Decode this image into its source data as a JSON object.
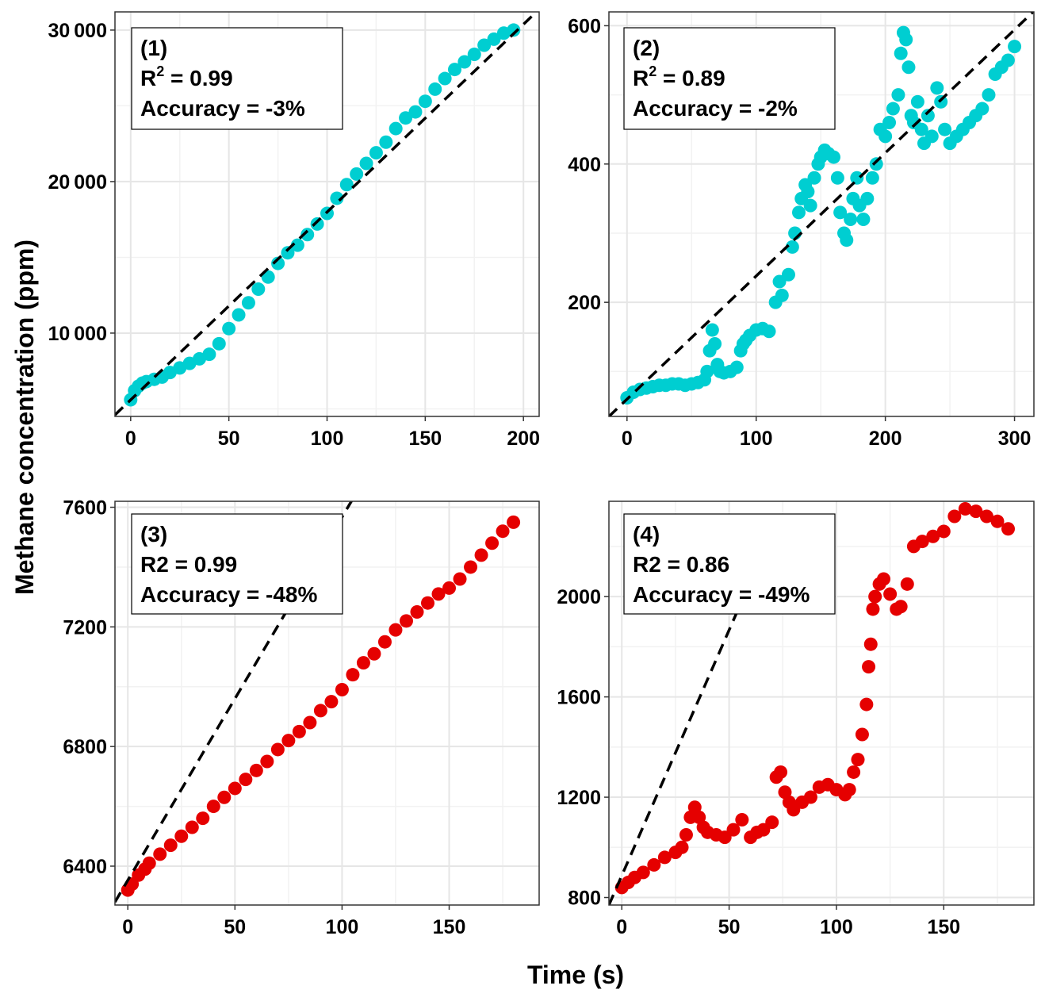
{
  "figure": {
    "ylabel": "Methane concentration (ppm)",
    "xlabel": "Time (s)"
  },
  "colors": {
    "cyan": "#00CED1",
    "red": "#E50000",
    "refline": "#000000"
  },
  "chart_data": [
    {
      "type": "scatter",
      "panel": "(1)",
      "annotation": [
        "(1)",
        "R2 = 0.99",
        "Accuracy = -3%"
      ],
      "r2_superscript": true,
      "xlim": [
        -8,
        208
      ],
      "ylim": [
        4500,
        31200
      ],
      "xticks": [
        0,
        50,
        100,
        150,
        200
      ],
      "xtick_labels": [
        "0",
        "50",
        "100",
        "150",
        "200"
      ],
      "yticks": [
        10000,
        20000,
        30000
      ],
      "ytick_labels": [
        "10 000",
        "20 000",
        "30 000"
      ],
      "color": "#00CED1",
      "reference_line": [
        [
          -8,
          4600
        ],
        [
          205,
          31000
        ]
      ],
      "x": [
        0,
        2,
        4,
        6,
        8,
        12,
        16,
        20,
        25,
        30,
        35,
        40,
        45,
        50,
        55,
        60,
        65,
        70,
        75,
        80,
        85,
        90,
        95,
        100,
        105,
        110,
        115,
        120,
        125,
        130,
        135,
        140,
        145,
        150,
        155,
        160,
        165,
        170,
        175,
        180,
        185,
        190,
        195
      ],
      "y": [
        5600,
        6200,
        6500,
        6700,
        6800,
        6950,
        7100,
        7400,
        7700,
        8000,
        8300,
        8600,
        9300,
        10300,
        11200,
        12000,
        12900,
        13700,
        14600,
        15300,
        15800,
        16500,
        17200,
        17900,
        18900,
        19800,
        20500,
        21200,
        21900,
        22600,
        23500,
        24200,
        24600,
        25300,
        26100,
        26800,
        27400,
        27900,
        28400,
        29000,
        29400,
        29800,
        30000
      ]
    },
    {
      "type": "scatter",
      "panel": "(2)",
      "annotation": [
        "(2)",
        "R2 = 0.89",
        "Accuracy = -2%"
      ],
      "r2_superscript": true,
      "xlim": [
        -14,
        315
      ],
      "ylim": [
        35,
        620
      ],
      "xticks": [
        0,
        100,
        200,
        300
      ],
      "xtick_labels": [
        "0",
        "100",
        "200",
        "300"
      ],
      "yticks": [
        200,
        400,
        600
      ],
      "ytick_labels": [
        "200",
        "400",
        "600"
      ],
      "color": "#00CED1",
      "reference_line": [
        [
          -14,
          35
        ],
        [
          315,
          621
        ]
      ],
      "x": [
        0,
        5,
        10,
        15,
        20,
        25,
        30,
        35,
        40,
        45,
        50,
        55,
        60,
        62,
        64,
        66,
        68,
        70,
        72,
        75,
        80,
        85,
        88,
        90,
        92,
        95,
        100,
        105,
        110,
        115,
        118,
        120,
        125,
        128,
        130,
        133,
        135,
        138,
        140,
        142,
        145,
        148,
        150,
        153,
        156,
        160,
        163,
        165,
        168,
        170,
        173,
        175,
        178,
        180,
        183,
        186,
        190,
        193,
        196,
        200,
        203,
        206,
        210,
        212,
        214,
        216,
        218,
        220,
        222,
        225,
        228,
        230,
        233,
        236,
        240,
        243,
        246,
        250,
        255,
        260,
        265,
        270,
        275,
        280,
        285,
        290,
        295,
        300
      ],
      "y": [
        62,
        70,
        74,
        76,
        78,
        80,
        80,
        82,
        82,
        80,
        82,
        84,
        88,
        100,
        130,
        160,
        140,
        110,
        100,
        98,
        100,
        106,
        130,
        140,
        145,
        152,
        160,
        162,
        158,
        200,
        230,
        210,
        240,
        280,
        300,
        330,
        350,
        370,
        360,
        340,
        380,
        400,
        410,
        420,
        415,
        410,
        380,
        330,
        300,
        290,
        320,
        350,
        380,
        340,
        320,
        350,
        380,
        400,
        450,
        440,
        460,
        480,
        500,
        560,
        590,
        580,
        540,
        470,
        460,
        490,
        450,
        430,
        470,
        440,
        510,
        490,
        450,
        430,
        440,
        450,
        460,
        470,
        480,
        500,
        530,
        540,
        550,
        570
      ]
    },
    {
      "type": "scatter",
      "panel": "(3)",
      "annotation": [
        "(3)",
        "R2 = 0.99",
        "Accuracy = -48%"
      ],
      "r2_superscript": false,
      "xlim": [
        -6,
        192
      ],
      "ylim": [
        6270,
        7620
      ],
      "xticks": [
        0,
        50,
        100,
        150
      ],
      "xtick_labels": [
        "0",
        "50",
        "100",
        "150"
      ],
      "yticks": [
        6400,
        6800,
        7200,
        7600
      ],
      "ytick_labels": [
        "6400",
        "6800",
        "7200",
        "7600"
      ],
      "color": "#E50000",
      "reference_line": [
        [
          -6,
          6280
        ],
        [
          106,
          7640
        ]
      ],
      "x": [
        0,
        2,
        5,
        8,
        10,
        15,
        20,
        25,
        30,
        35,
        40,
        45,
        50,
        55,
        60,
        65,
        70,
        75,
        80,
        85,
        90,
        95,
        100,
        105,
        110,
        115,
        120,
        125,
        130,
        135,
        140,
        145,
        150,
        155,
        160,
        165,
        170,
        175,
        180
      ],
      "y": [
        6320,
        6340,
        6370,
        6390,
        6410,
        6440,
        6470,
        6500,
        6530,
        6560,
        6600,
        6630,
        6660,
        6690,
        6720,
        6750,
        6790,
        6820,
        6850,
        6880,
        6920,
        6950,
        6990,
        7040,
        7080,
        7110,
        7150,
        7190,
        7220,
        7250,
        7280,
        7310,
        7330,
        7360,
        7400,
        7440,
        7480,
        7520,
        7550
      ]
    },
    {
      "type": "scatter",
      "panel": "(4)",
      "annotation": [
        "(4)",
        "R2 = 0.86",
        "Accuracy = -49%"
      ],
      "r2_superscript": false,
      "xlim": [
        -6,
        192
      ],
      "ylim": [
        770,
        2380
      ],
      "xticks": [
        0,
        50,
        100,
        150
      ],
      "xtick_labels": [
        "0",
        "50",
        "100",
        "150"
      ],
      "yticks": [
        800,
        1200,
        1600,
        2000
      ],
      "ytick_labels": [
        "800",
        "1200",
        "1600",
        "2000"
      ],
      "color": "#E50000",
      "reference_line": [
        [
          -6,
          770
        ],
        [
          66,
          2180
        ]
      ],
      "x": [
        0,
        3,
        6,
        10,
        15,
        20,
        25,
        28,
        30,
        32,
        34,
        36,
        38,
        40,
        44,
        48,
        52,
        56,
        60,
        63,
        66,
        70,
        72,
        74,
        76,
        78,
        80,
        84,
        88,
        92,
        96,
        100,
        104,
        106,
        108,
        110,
        112,
        114,
        115,
        116,
        117,
        118,
        120,
        122,
        125,
        128,
        130,
        133,
        136,
        140,
        145,
        150,
        155,
        160,
        165,
        170,
        175,
        180
      ],
      "y": [
        840,
        860,
        880,
        900,
        930,
        960,
        980,
        1000,
        1050,
        1120,
        1160,
        1120,
        1080,
        1060,
        1050,
        1040,
        1070,
        1110,
        1040,
        1060,
        1070,
        1100,
        1280,
        1300,
        1220,
        1180,
        1150,
        1180,
        1200,
        1240,
        1250,
        1230,
        1210,
        1230,
        1300,
        1350,
        1450,
        1570,
        1720,
        1810,
        1950,
        2000,
        2050,
        2070,
        2010,
        1950,
        1960,
        2050,
        2200,
        2220,
        2240,
        2260,
        2320,
        2350,
        2340,
        2320,
        2300,
        2270
      ]
    }
  ]
}
